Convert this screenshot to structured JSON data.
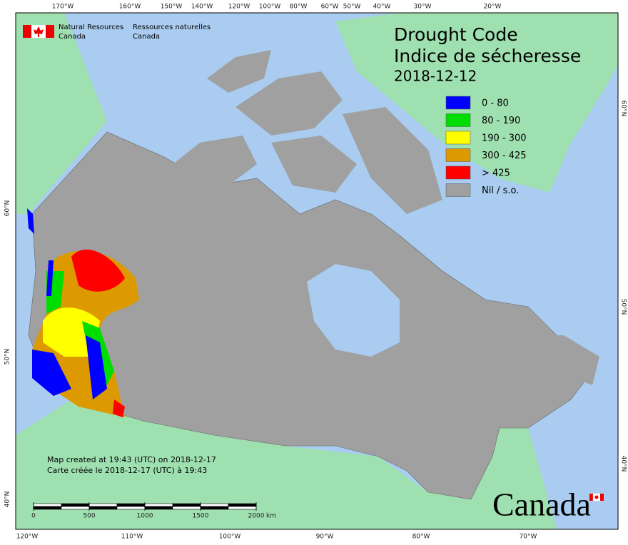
{
  "header": {
    "department_en": [
      "Natural Resources",
      "Canada"
    ],
    "department_fr": [
      "Ressources naturelles",
      "Canada"
    ]
  },
  "title": {
    "lines": [
      "Drought Code",
      "Indice de sécheresse"
    ],
    "date": "2018-12-12"
  },
  "legend": [
    {
      "label": "0 - 80",
      "color": "#0000ff"
    },
    {
      "label": "80 - 190",
      "color": "#00dd00"
    },
    {
      "label": "190 - 300",
      "color": "#ffff00"
    },
    {
      "label": "300 - 425",
      "color": "#dd9900"
    },
    {
      "label": "> 425",
      "color": "#ff0000"
    },
    {
      "label": "Nil / s.o.",
      "color": "#a0a0a0"
    }
  ],
  "footer": [
    "Map created at 19:43 (UTC) on 2018-12-17",
    "Carte créée le 2018-12-17 (UTC) à 19:43"
  ],
  "scale": {
    "ticks": [
      0,
      500,
      1000,
      1500,
      2000
    ],
    "unit": "km"
  },
  "graticule": {
    "top": [
      "170°W",
      "160°W",
      "150°W",
      "140°W",
      "120°W",
      "100°W",
      "80°W",
      "60°W",
      "50°W",
      "40°W",
      "30°W",
      "20°W"
    ],
    "bottom": [
      "120°W",
      "110°W",
      "100°W",
      "90°W",
      "80°W",
      "70°W"
    ],
    "left": [
      "60°N",
      "50°N",
      "40°N"
    ],
    "right": [
      "60°N",
      "50°N",
      "40°N"
    ]
  },
  "wordmark": "Canada"
}
